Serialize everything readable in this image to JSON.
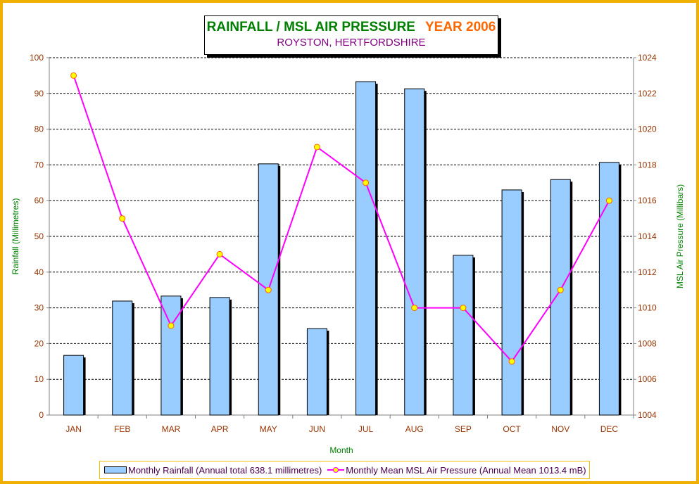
{
  "chart_data": {
    "type": "bar",
    "title": "RAINFALL / MSL AIR PRESSURE",
    "title_year": "YEAR 2006",
    "subtitle": "ROYSTON, HERTFORDSHIRE",
    "xlabel": "Month",
    "ylabel": "Rainfall (Millimetres)",
    "y2label": "MSL Air Pressure (Millibars)",
    "categories": [
      "JAN",
      "FEB",
      "MAR",
      "APR",
      "MAY",
      "JUN",
      "JUL",
      "AUG",
      "SEP",
      "OCT",
      "NOV",
      "DEC"
    ],
    "ylim": [
      0,
      100
    ],
    "y2lim": [
      1004,
      1024
    ],
    "yticks": [
      0,
      10,
      20,
      30,
      40,
      50,
      60,
      70,
      80,
      90,
      100
    ],
    "y2ticks": [
      1004,
      1006,
      1008,
      1010,
      1012,
      1014,
      1016,
      1018,
      1020,
      1022,
      1024
    ],
    "grid": true,
    "legend_position": "bottom",
    "series": [
      {
        "name": "Monthly Rainfall (Annual total 638.1 millimetres)",
        "type": "bar",
        "axis": "left",
        "color": "#99ccff",
        "values": [
          16.7,
          31.9,
          33.3,
          32.9,
          70.3,
          24.2,
          93.3,
          91.3,
          44.7,
          63.0,
          65.9,
          70.7
        ]
      },
      {
        "name": "Monthly Mean MSL Air Pressure (Annual Mean 1013.4 mB)",
        "type": "line",
        "axis": "right",
        "color": "#ff00ff",
        "marker_color": "#ffff00",
        "values": [
          1023,
          1015,
          1009,
          1013,
          1011,
          1019,
          1017,
          1010,
          1010,
          1007,
          1011,
          1016
        ]
      }
    ]
  }
}
